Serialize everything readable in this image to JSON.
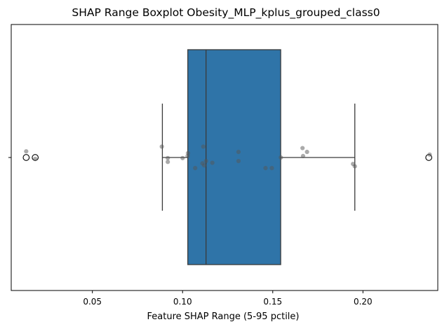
{
  "chart_data": {
    "type": "boxplot",
    "title": "SHAP Range Boxplot Obesity_MLP_kplus_grouped_class0",
    "xlabel": "Feature SHAP Range (5-95 pctile)",
    "ylabel": "",
    "xlim": [
      0.005,
      0.2415
    ],
    "xticks": [
      0.05,
      0.1,
      0.15,
      0.2
    ],
    "xtick_labels": [
      "0.05",
      "0.10",
      "0.15",
      "0.20"
    ],
    "orientation": "horizontal",
    "box": {
      "whisker_low": 0.0888,
      "q1": 0.1029,
      "median": 0.113,
      "q3": 0.1544,
      "whisker_high": 0.1955
    },
    "outliers": [
      0.0133,
      0.0183,
      0.2365
    ],
    "points": [
      {
        "x": 0.0133,
        "jitter": 0.21
      },
      {
        "x": 0.0183,
        "jitter": -0.05
      },
      {
        "x": 0.0885,
        "jitter": 0.37
      },
      {
        "x": 0.0918,
        "jitter": -0.02
      },
      {
        "x": 0.0918,
        "jitter": -0.15
      },
      {
        "x": 0.1,
        "jitter": -0.02
      },
      {
        "x": 0.1028,
        "jitter": 0.05
      },
      {
        "x": 0.103,
        "jitter": 0.15
      },
      {
        "x": 0.107,
        "jitter": -0.36
      },
      {
        "x": 0.111,
        "jitter": -0.2
      },
      {
        "x": 0.1115,
        "jitter": 0.37
      },
      {
        "x": 0.112,
        "jitter": -0.27
      },
      {
        "x": 0.113,
        "jitter": -0.12
      },
      {
        "x": 0.1165,
        "jitter": -0.18
      },
      {
        "x": 0.131,
        "jitter": 0.19
      },
      {
        "x": 0.131,
        "jitter": -0.12
      },
      {
        "x": 0.146,
        "jitter": -0.36
      },
      {
        "x": 0.1495,
        "jitter": -0.36
      },
      {
        "x": 0.1545,
        "jitter": 0.0
      },
      {
        "x": 0.1665,
        "jitter": 0.32
      },
      {
        "x": 0.1668,
        "jitter": 0.05
      },
      {
        "x": 0.169,
        "jitter": 0.19
      },
      {
        "x": 0.1945,
        "jitter": -0.22
      },
      {
        "x": 0.1955,
        "jitter": -0.3
      },
      {
        "x": 0.237,
        "jitter": 0.1
      }
    ],
    "colors": {
      "box_fill": "#2f74a8",
      "box_edge": "#3a3a3a",
      "point": "#555555"
    },
    "grid": false,
    "legend": "none"
  }
}
